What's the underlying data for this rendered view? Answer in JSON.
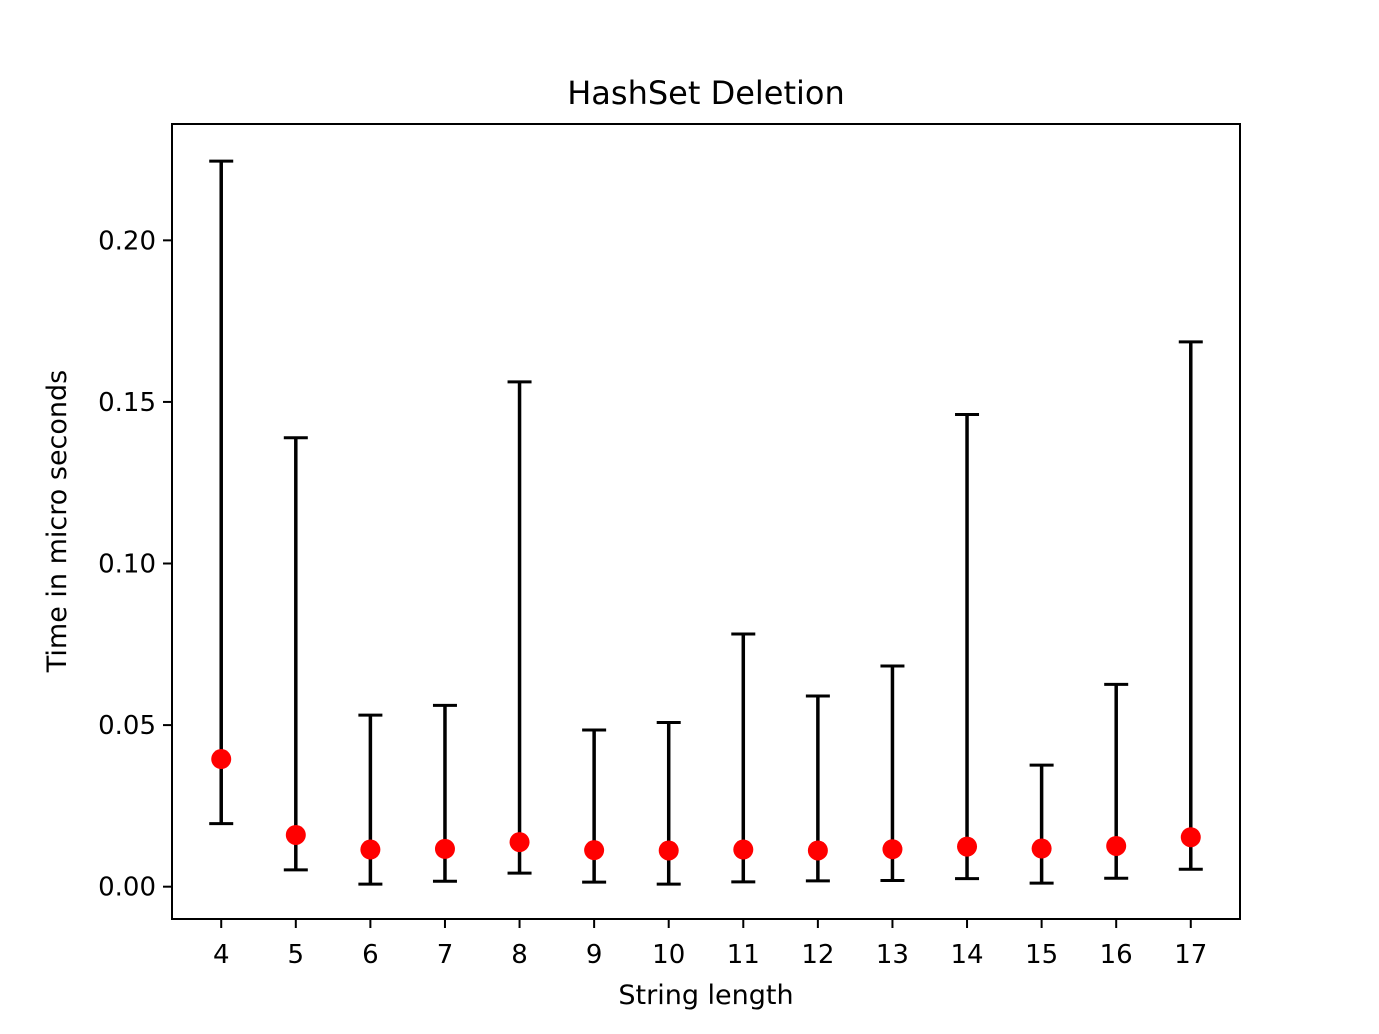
{
  "chart_data": {
    "type": "scatter",
    "title": "HashSet Deletion",
    "xlabel": "String length",
    "ylabel": "Time in micro seconds",
    "x": [
      4,
      5,
      6,
      7,
      8,
      9,
      10,
      11,
      12,
      13,
      14,
      15,
      16,
      17
    ],
    "xlim": [
      3.34,
      17.66
    ],
    "ylim": [
      -0.01,
      0.236
    ],
    "y_ticks": [
      0.0,
      0.05,
      0.1,
      0.15,
      0.2
    ],
    "y_tick_labels": [
      "0.00",
      "0.05",
      "0.10",
      "0.15",
      "0.20"
    ],
    "series": [
      {
        "marker_color": "#ff0000",
        "errorbar_color": "#000000",
        "values": [
          0.0395,
          0.016,
          0.0115,
          0.0117,
          0.0138,
          0.0113,
          0.0112,
          0.0115,
          0.0112,
          0.0116,
          0.0124,
          0.0118,
          0.0126,
          0.0153
        ],
        "lower": [
          0.0195,
          0.0052,
          0.0008,
          0.0017,
          0.0042,
          0.0014,
          0.0008,
          0.0015,
          0.0018,
          0.0019,
          0.0025,
          0.0011,
          0.0026,
          0.0054
        ],
        "upper": [
          0.2245,
          0.1389,
          0.0531,
          0.0561,
          0.1562,
          0.0485,
          0.0508,
          0.0782,
          0.059,
          0.0683,
          0.1461,
          0.0376,
          0.0626,
          0.1686
        ]
      }
    ],
    "grid": false,
    "legend": "none"
  }
}
